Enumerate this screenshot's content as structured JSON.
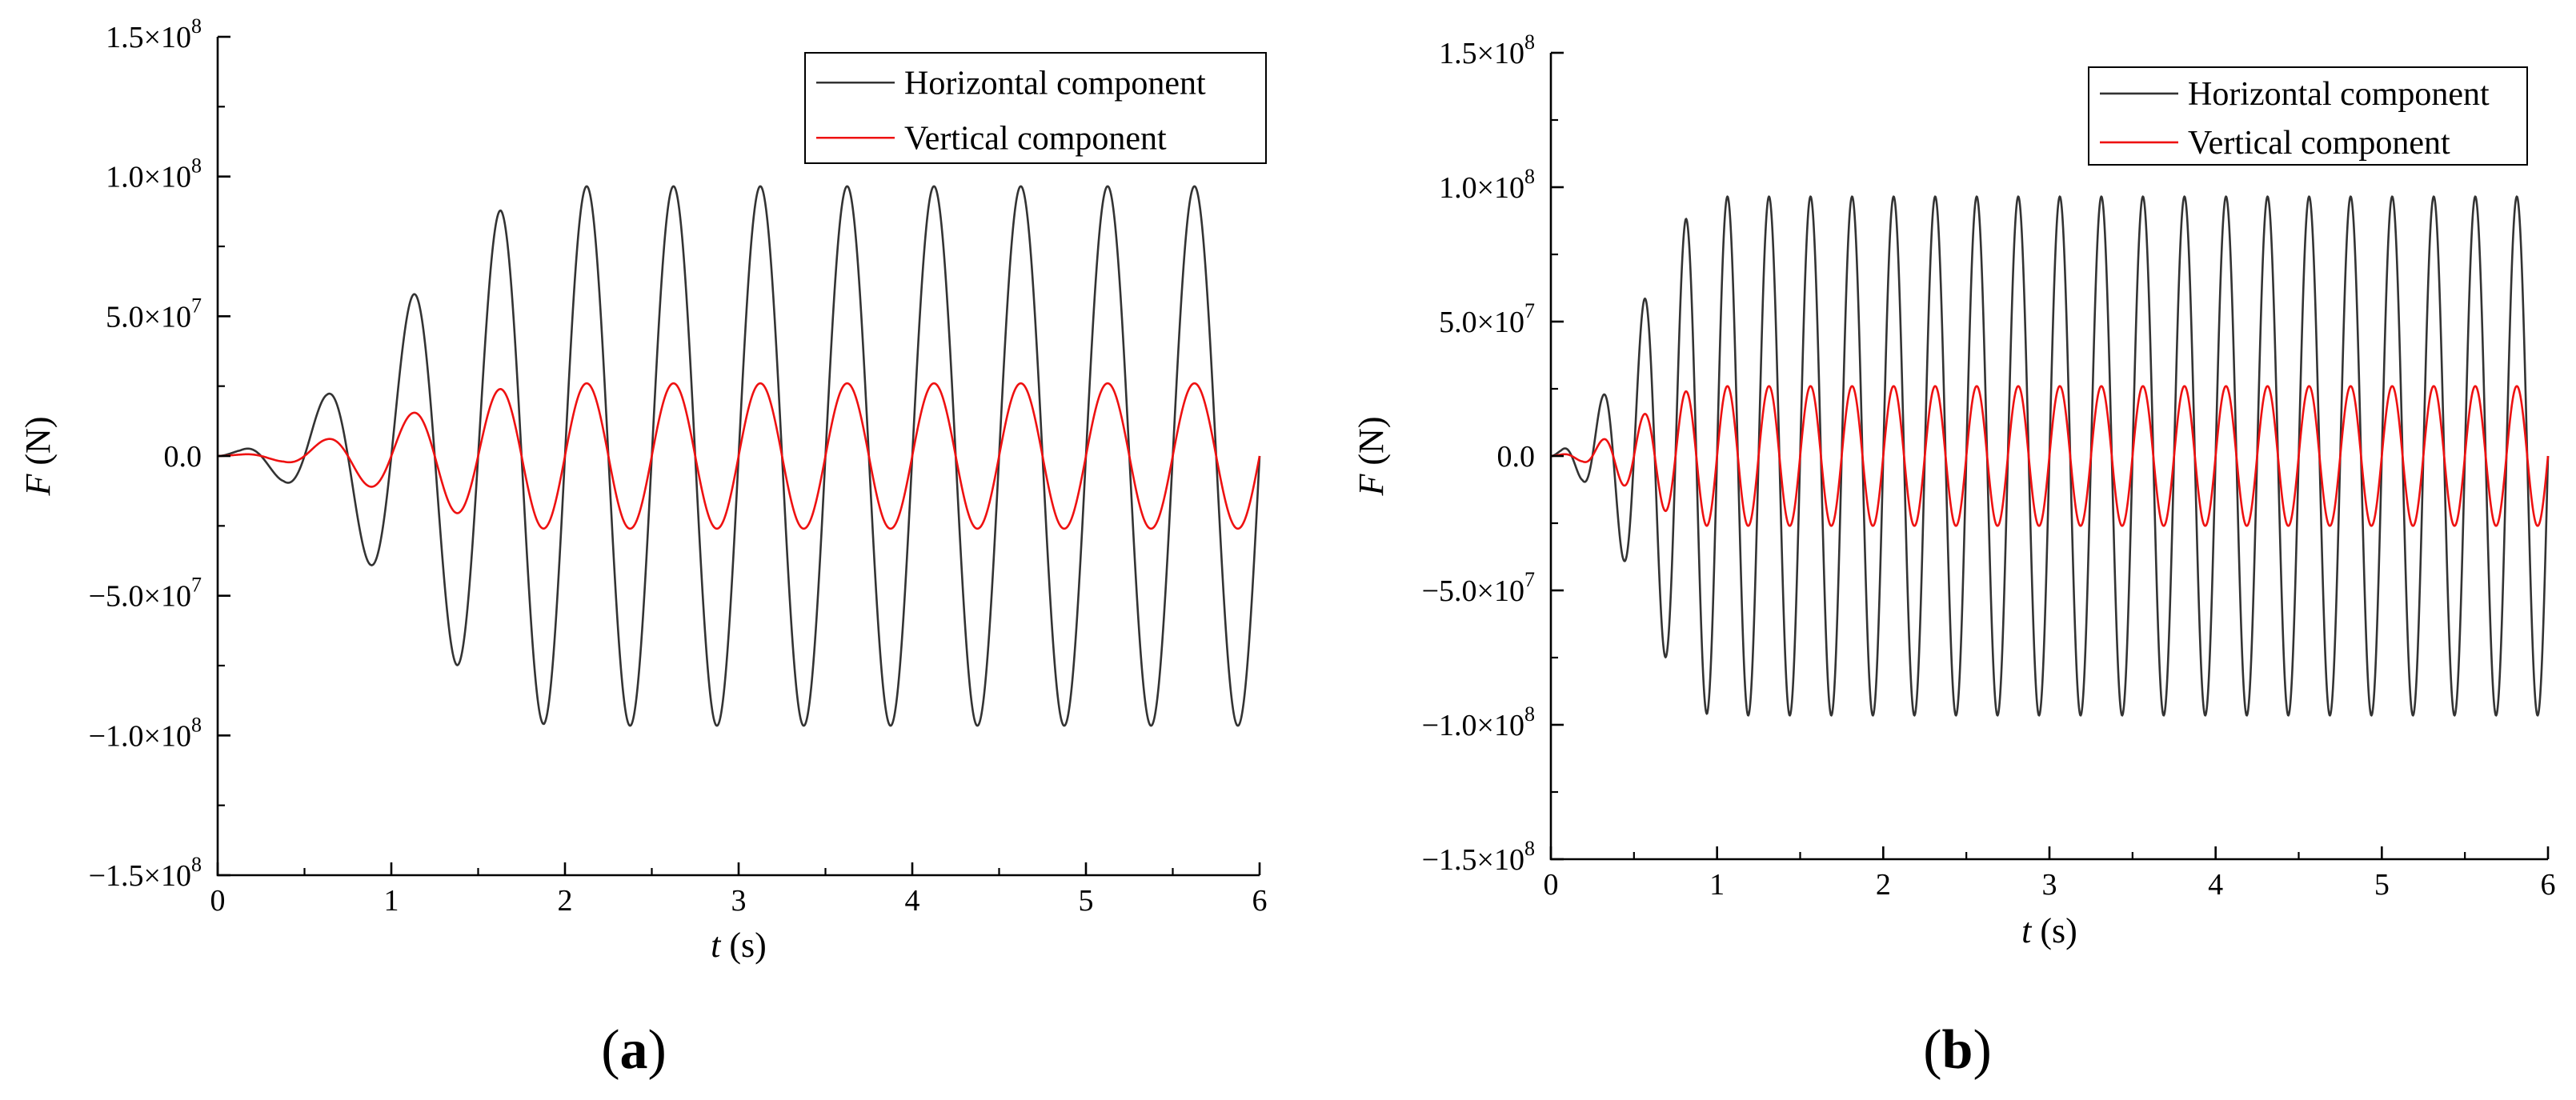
{
  "chart_data": [
    {
      "type": "line",
      "panel_label": "(a)",
      "panel_letter": "a",
      "title": "",
      "xlabel": {
        "symbol": "t",
        "unit": " (s)"
      },
      "ylabel": {
        "symbol": "F",
        "unit": " (N)"
      },
      "xlim": [
        0,
        6
      ],
      "ylim": [
        -150000000,
        150000000
      ],
      "xticks": [
        0,
        1,
        2,
        3,
        4,
        5,
        6
      ],
      "xtick_labels": [
        "0",
        "1",
        "2",
        "3",
        "4",
        "5",
        "6"
      ],
      "yticks": [
        -150000000,
        -100000000,
        -50000000,
        0,
        50000000,
        100000000,
        150000000
      ],
      "ytick_labels": [
        {
          "mantissa": "−1.5×10",
          "exp": "8"
        },
        {
          "mantissa": "−1.0×10",
          "exp": "8"
        },
        {
          "mantissa": "−5.0×10",
          "exp": "7"
        },
        {
          "mantissa": "0.0",
          "exp": ""
        },
        {
          "mantissa": "5.0×10",
          "exp": "7"
        },
        {
          "mantissa": "1.0×10",
          "exp": "8"
        },
        {
          "mantissa": "1.5×10",
          "exp": "8"
        }
      ],
      "grid": false,
      "legend_position": "top-right",
      "period_s": 0.5,
      "series": [
        {
          "name": "Horizontal component",
          "color": "#333333",
          "amplitude": 96500000,
          "peaks": [
            [
              0.13,
              2000000
            ],
            [
              0.38,
              -9000000
            ],
            [
              0.63,
              22000000
            ],
            [
              0.88,
              -39000000
            ],
            [
              1.13,
              58000000
            ],
            [
              1.38,
              -75000000
            ],
            [
              1.63,
              88000000
            ],
            [
              1.88,
              -96000000
            ],
            [
              2.13,
              96500000
            ],
            [
              2.38,
              -96500000
            ],
            [
              2.63,
              96500000
            ],
            [
              2.88,
              -96500000
            ],
            [
              3.13,
              96500000
            ],
            [
              3.38,
              -96500000
            ],
            [
              3.63,
              96500000
            ],
            [
              3.88,
              -96500000
            ],
            [
              4.13,
              96500000
            ],
            [
              4.38,
              -96500000
            ],
            [
              4.63,
              96500000
            ],
            [
              4.88,
              -96500000
            ],
            [
              5.13,
              96500000
            ],
            [
              5.38,
              -96500000
            ],
            [
              5.63,
              96500000
            ],
            [
              5.88,
              -96500000
            ]
          ]
        },
        {
          "name": "Vertical component",
          "color": "#ee1111",
          "amplitude": 26000000,
          "peaks": [
            [
              0.13,
              500000
            ],
            [
              0.38,
              -2000000
            ],
            [
              0.63,
              6000000
            ],
            [
              0.88,
              -11000000
            ],
            [
              1.13,
              15500000
            ],
            [
              1.38,
              -20500000
            ],
            [
              1.63,
              24000000
            ],
            [
              1.88,
              -26000000
            ],
            [
              2.13,
              26000000
            ],
            [
              2.38,
              -26000000
            ],
            [
              2.63,
              26000000
            ],
            [
              2.88,
              -26000000
            ],
            [
              3.13,
              26000000
            ],
            [
              3.38,
              -26000000
            ],
            [
              3.63,
              26000000
            ],
            [
              3.88,
              -26000000
            ],
            [
              4.13,
              26000000
            ],
            [
              4.38,
              -26000000
            ],
            [
              4.63,
              26000000
            ],
            [
              4.88,
              -26000000
            ],
            [
              5.13,
              26000000
            ],
            [
              5.38,
              -26000000
            ],
            [
              5.63,
              26000000
            ],
            [
              5.88,
              -26000000
            ]
          ]
        }
      ]
    },
    {
      "type": "line",
      "panel_label": "(b)",
      "panel_letter": "b",
      "title": "",
      "xlabel": {
        "symbol": "t",
        "unit": " (s)"
      },
      "ylabel": {
        "symbol": "F",
        "unit": " (N)"
      },
      "xlim": [
        0,
        6
      ],
      "ylim": [
        -150000000,
        150000000
      ],
      "xticks": [
        0,
        1,
        2,
        3,
        4,
        5,
        6
      ],
      "xtick_labels": [
        "0",
        "1",
        "2",
        "3",
        "4",
        "5",
        "6"
      ],
      "yticks": [
        -150000000,
        -100000000,
        -50000000,
        0,
        50000000,
        100000000,
        150000000
      ],
      "ytick_labels": [
        {
          "mantissa": "−1.5×10",
          "exp": "8"
        },
        {
          "mantissa": "−1.0×10",
          "exp": "8"
        },
        {
          "mantissa": "−5.0×10",
          "exp": "7"
        },
        {
          "mantissa": "0.0",
          "exp": ""
        },
        {
          "mantissa": "5.0×10",
          "exp": "7"
        },
        {
          "mantissa": "1.0×10",
          "exp": "8"
        },
        {
          "mantissa": "1.5×10",
          "exp": "8"
        }
      ],
      "grid": false,
      "legend_position": "top-right",
      "period_s": 0.25,
      "series": [
        {
          "name": "Horizontal component",
          "color": "#333333",
          "amplitude": 96500000,
          "peaks": [
            [
              0.06,
              2000000
            ],
            [
              0.19,
              -9000000
            ],
            [
              0.31,
              22000000
            ],
            [
              0.44,
              -39000000
            ],
            [
              0.56,
              58000000
            ],
            [
              0.69,
              -75000000
            ],
            [
              0.81,
              88000000
            ],
            [
              0.94,
              -96000000
            ],
            [
              1.06,
              96500000
            ],
            [
              1.19,
              -96500000
            ],
            [
              1.31,
              96500000
            ],
            [
              1.44,
              -96500000
            ],
            [
              1.56,
              96500000
            ],
            [
              1.69,
              -96500000
            ],
            [
              1.81,
              96500000
            ],
            [
              1.94,
              -96500000
            ],
            [
              2.06,
              96500000
            ],
            [
              2.19,
              -96500000
            ],
            [
              2.31,
              96500000
            ],
            [
              2.44,
              -96500000
            ],
            [
              2.56,
              96500000
            ],
            [
              2.69,
              -96500000
            ],
            [
              2.81,
              96500000
            ],
            [
              2.94,
              -96500000
            ],
            [
              3.06,
              96500000
            ],
            [
              3.19,
              -96500000
            ],
            [
              3.31,
              96500000
            ],
            [
              3.44,
              -96500000
            ],
            [
              3.56,
              96500000
            ],
            [
              3.69,
              -96500000
            ],
            [
              3.81,
              96500000
            ],
            [
              3.94,
              -96500000
            ],
            [
              4.06,
              96500000
            ],
            [
              4.19,
              -96500000
            ],
            [
              4.31,
              96500000
            ],
            [
              4.44,
              -96500000
            ],
            [
              4.56,
              96500000
            ],
            [
              4.69,
              -96500000
            ],
            [
              4.81,
              96500000
            ],
            [
              4.94,
              -96500000
            ],
            [
              5.06,
              96500000
            ],
            [
              5.19,
              -96500000
            ],
            [
              5.31,
              96500000
            ],
            [
              5.44,
              -96500000
            ],
            [
              5.56,
              96500000
            ],
            [
              5.69,
              -96500000
            ],
            [
              5.81,
              96500000
            ],
            [
              5.94,
              -96500000
            ]
          ]
        },
        {
          "name": "Vertical component",
          "color": "#ee1111",
          "amplitude": 26000000,
          "peaks": [
            [
              0.06,
              500000
            ],
            [
              0.19,
              -2000000
            ],
            [
              0.31,
              6000000
            ],
            [
              0.44,
              -11000000
            ],
            [
              0.56,
              15500000
            ],
            [
              0.69,
              -20500000
            ],
            [
              0.81,
              24000000
            ],
            [
              0.94,
              -26000000
            ],
            [
              1.06,
              26000000
            ],
            [
              1.19,
              -26000000
            ],
            [
              1.31,
              26000000
            ],
            [
              1.44,
              -26000000
            ],
            [
              1.56,
              26000000
            ],
            [
              1.69,
              -26000000
            ],
            [
              1.81,
              26000000
            ],
            [
              1.94,
              -26000000
            ],
            [
              2.06,
              26000000
            ],
            [
              2.19,
              -26000000
            ],
            [
              2.31,
              26000000
            ],
            [
              2.44,
              -26000000
            ],
            [
              2.56,
              26000000
            ],
            [
              2.69,
              -26000000
            ],
            [
              2.81,
              26000000
            ],
            [
              2.94,
              -26000000
            ],
            [
              3.06,
              26000000
            ],
            [
              3.19,
              -26000000
            ],
            [
              3.31,
              26000000
            ],
            [
              3.44,
              -26000000
            ],
            [
              3.56,
              26000000
            ],
            [
              3.69,
              -26000000
            ],
            [
              3.81,
              26000000
            ],
            [
              3.94,
              -26000000
            ],
            [
              4.06,
              26000000
            ],
            [
              4.19,
              -26000000
            ],
            [
              4.31,
              26000000
            ],
            [
              4.44,
              -26000000
            ],
            [
              4.56,
              26000000
            ],
            [
              4.69,
              -26000000
            ],
            [
              4.81,
              26000000
            ],
            [
              4.94,
              -26000000
            ],
            [
              5.06,
              26000000
            ],
            [
              5.19,
              -26000000
            ],
            [
              5.31,
              26000000
            ],
            [
              5.44,
              -26000000
            ],
            [
              5.56,
              26000000
            ],
            [
              5.69,
              -26000000
            ],
            [
              5.81,
              26000000
            ],
            [
              5.94,
              -26000000
            ]
          ]
        }
      ]
    }
  ]
}
